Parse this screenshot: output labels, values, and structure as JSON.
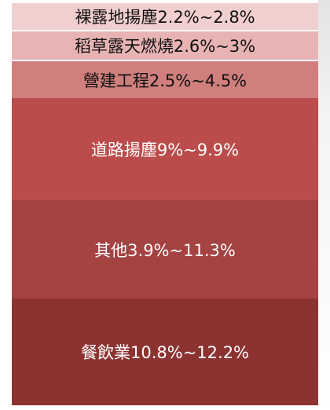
{
  "blocks": [
    {
      "label": "裸露地揚塵2.2%~2.8%"
    },
    {
      "label": "稻草露天燃燒2.6%~3%"
    },
    {
      "label": "營建工程2.5%~4.5%"
    },
    {
      "label": "道路揚塵9%~9.9%"
    },
    {
      "label": "其他3.9%~11.3%"
    },
    {
      "label": "餐飲業10.8%~12.2%"
    }
  ]
}
